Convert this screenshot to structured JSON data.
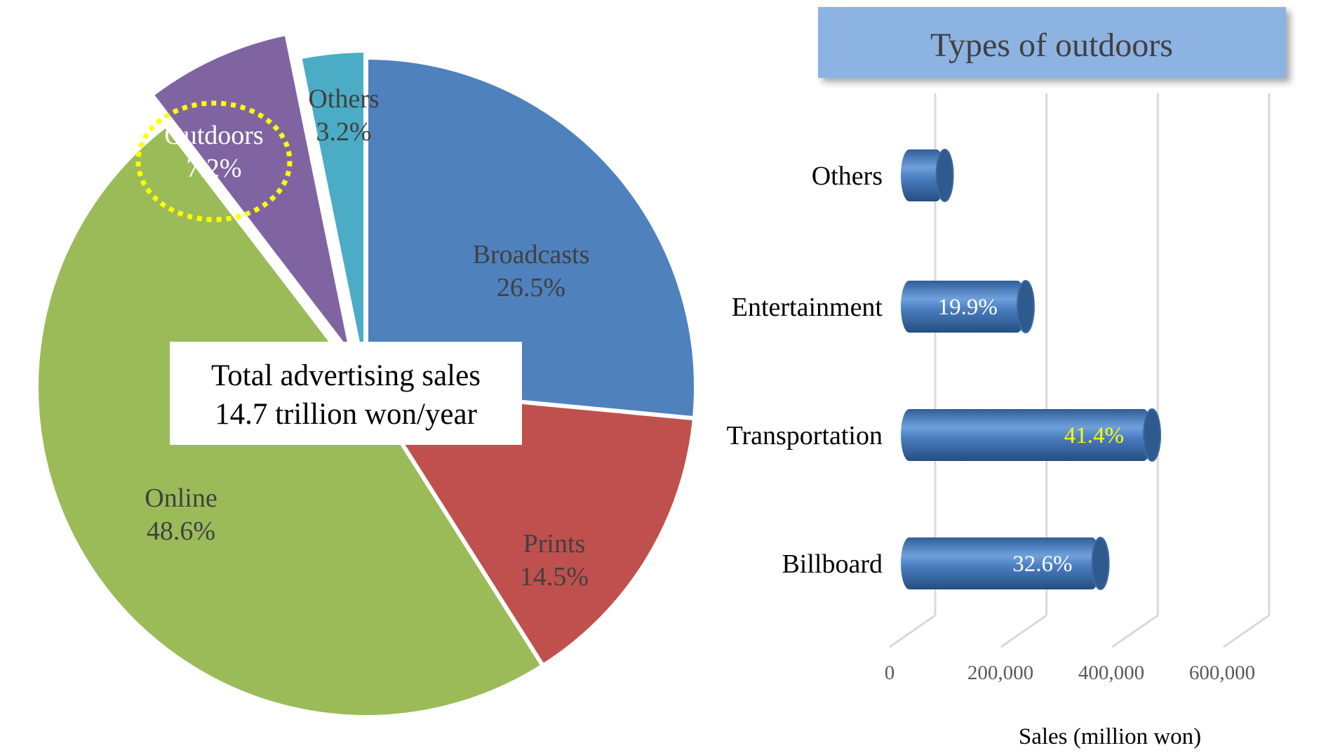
{
  "chart_data": [
    {
      "type": "pie",
      "slices": [
        {
          "name": "Broadcasts",
          "value": 26.5,
          "label": "26.5%",
          "color": "#4F81BD",
          "text_color": "#404040"
        },
        {
          "name": "Prints",
          "value": 14.5,
          "label": "14.5%",
          "color": "#C0504D",
          "text_color": "#404040"
        },
        {
          "name": "Online",
          "value": 48.6,
          "label": "48.6%",
          "color": "#9BBB59",
          "text_color": "#404040"
        },
        {
          "name": "Outdoors",
          "value": 7.2,
          "label": "7.2%",
          "color": "#8064A2",
          "text_color": "#ffffff",
          "exploded": true,
          "highlighted": true
        },
        {
          "name": "Others",
          "value": 3.2,
          "label": "3.2%",
          "color": "#4BACC6",
          "text_color": "#404040",
          "exploded": true
        }
      ],
      "center_box": {
        "line1": "Total advertising sales",
        "line2": "14.7 trillion won/year"
      },
      "highlight_color": "#FFFF00"
    },
    {
      "type": "bar",
      "orientation": "horizontal",
      "style": "3d-cylinder",
      "title": "Types of outdoors",
      "title_bg": "#8DB3E2",
      "categories": [
        "Billboard",
        "Transportation",
        "Entertainment",
        "Others"
      ],
      "values": [
        345000,
        438000,
        210000,
        64000
      ],
      "data_labels": [
        "32.6%",
        "41.4%",
        "19.9%",
        ""
      ],
      "data_label_colors": [
        "#ffffff",
        "#FFFF00",
        "#ffffff",
        "#ffffff"
      ],
      "bar_color": "#4A7EC0",
      "xlabel": "Sales (million won)",
      "xlim": [
        0,
        600000
      ],
      "xticks": [
        "0",
        "200,000",
        "400,000",
        "600,000"
      ],
      "grid": true
    }
  ]
}
